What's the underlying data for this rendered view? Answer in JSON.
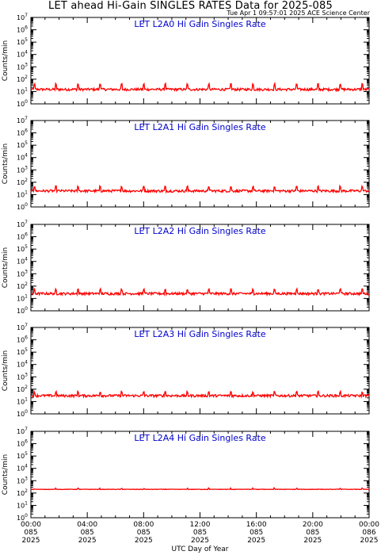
{
  "title": "LET ahead Hi-Gain SINGLES RATES Data for 2025-085",
  "timestamp": "Tue Apr  1 09:57:01 2025 ACE Science Center",
  "xlabel": "UTC Day of Year",
  "colors": {
    "trace": "#ff0000",
    "panel_title": "#0000cc",
    "axes": "#000000"
  },
  "chart_data": [
    {
      "type": "line",
      "title": "LET L2A0 Hi Gain Singles Rate",
      "ylabel": "Counts/min",
      "yscale": "log",
      "ylim": [
        1,
        10000000
      ],
      "baseline": 15,
      "spike_peak": 40,
      "series": [
        {
          "name": "",
          "color": "#ff0000"
        }
      ]
    },
    {
      "type": "line",
      "title": "LET L2A1 Hi Gain Singles Rate",
      "ylabel": "Counts/min",
      "yscale": "log",
      "ylim": [
        1,
        10000000
      ],
      "baseline": 20,
      "spike_peak": 45,
      "series": [
        {
          "name": "",
          "color": "#ff0000"
        }
      ]
    },
    {
      "type": "line",
      "title": "LET L2A2 Hi Gain Singles Rate",
      "ylabel": "Counts/min",
      "yscale": "log",
      "ylim": [
        1,
        10000000
      ],
      "baseline": 25,
      "spike_peak": 55,
      "series": [
        {
          "name": "",
          "color": "#ff0000"
        }
      ]
    },
    {
      "type": "line",
      "title": "LET L2A3 Hi Gain Singles Rate",
      "ylabel": "Counts/min",
      "yscale": "log",
      "ylim": [
        1,
        10000000
      ],
      "baseline": 30,
      "spike_peak": 60,
      "series": [
        {
          "name": "",
          "color": "#ff0000"
        }
      ]
    },
    {
      "type": "line",
      "title": "LET L2A4 Hi Gain Singles Rate",
      "ylabel": "Counts/min",
      "yscale": "log",
      "ylim": [
        1,
        10000000
      ],
      "baseline": 200,
      "spike_peak": 230,
      "series": [
        {
          "name": "",
          "color": "#ff0000"
        }
      ]
    }
  ],
  "x_axis": {
    "xlim_hours": [
      0,
      24
    ],
    "ticks": [
      {
        "hour": 0,
        "time": "00:00",
        "doy": "085",
        "year": "2025"
      },
      {
        "hour": 4,
        "time": "04:00",
        "doy": "085",
        "year": "2025"
      },
      {
        "hour": 8,
        "time": "08:00",
        "doy": "085",
        "year": "2025"
      },
      {
        "hour": 12,
        "time": "12:00",
        "doy": "085",
        "year": "2025"
      },
      {
        "hour": 16,
        "time": "16:00",
        "doy": "085",
        "year": "2025"
      },
      {
        "hour": 20,
        "time": "20:00",
        "doy": "085",
        "year": "2025"
      },
      {
        "hour": 24,
        "time": "00:00",
        "doy": "086",
        "year": "2025"
      }
    ]
  }
}
